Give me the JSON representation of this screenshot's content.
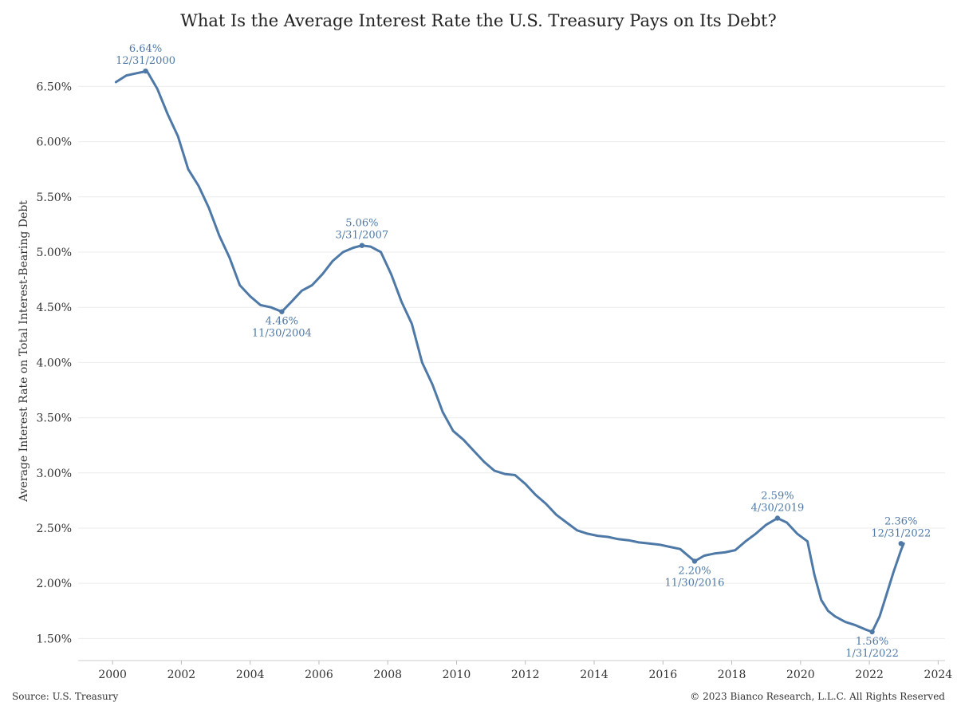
{
  "chart_data": {
    "type": "line",
    "title": "What Is the Average Interest Rate the U.S. Treasury Pays on Its Debt?",
    "xlabel": "",
    "ylabel": "Average Interest Rate on Total Interest-Bearing Debt",
    "xlim": [
      1999.0,
      2024.2
    ],
    "ylim": [
      1.3,
      6.85
    ],
    "x_ticks": [
      2000,
      2002,
      2004,
      2006,
      2008,
      2010,
      2012,
      2014,
      2016,
      2018,
      2020,
      2022,
      2024
    ],
    "x_tick_labels": [
      "2000",
      "2002",
      "2004",
      "2006",
      "2008",
      "2010",
      "2012",
      "2014",
      "2016",
      "2018",
      "2020",
      "2022",
      "2024"
    ],
    "y_ticks": [
      1.5,
      2.0,
      2.5,
      3.0,
      3.5,
      4.0,
      4.5,
      5.0,
      5.5,
      6.0,
      6.5
    ],
    "y_tick_labels": [
      "1.50%",
      "2.00%",
      "2.50%",
      "3.00%",
      "3.50%",
      "4.00%",
      "4.50%",
      "5.00%",
      "5.50%",
      "6.00%",
      "6.50%"
    ],
    "grid": "horizontal",
    "line_color": "#4e79a7",
    "series": [
      {
        "x": [
          2000.1,
          2000.4,
          2000.7,
          2001.0,
          2001.3,
          2001.6,
          2001.9,
          2002.2,
          2002.5,
          2002.8,
          2003.1,
          2003.4,
          2003.7,
          2004.0,
          2004.3,
          2004.6,
          2004.92,
          2005.2,
          2005.5,
          2005.8,
          2006.1,
          2006.4,
          2006.7,
          2007.0,
          2007.25,
          2007.5,
          2007.8,
          2008.1,
          2008.4,
          2008.7,
          2009.0,
          2009.3,
          2009.6,
          2009.9,
          2010.2,
          2010.5,
          2010.8,
          2011.1,
          2011.4,
          2011.7,
          2012.0,
          2012.3,
          2012.6,
          2012.9,
          2013.2,
          2013.5,
          2013.8,
          2014.1,
          2014.4,
          2014.7,
          2015.0,
          2015.3,
          2015.6,
          2015.9,
          2016.2,
          2016.5,
          2016.92,
          2017.2,
          2017.5,
          2017.8,
          2018.1,
          2018.4,
          2018.7,
          2019.0,
          2019.33,
          2019.6,
          2019.9,
          2020.2,
          2020.4,
          2020.6,
          2020.8,
          2021.0,
          2021.3,
          2021.6,
          2021.9,
          2022.08,
          2022.3,
          2022.5,
          2022.7,
          2022.92,
          2023.0
        ],
        "values": [
          6.54,
          6.6,
          6.62,
          6.64,
          6.48,
          6.25,
          6.05,
          5.75,
          5.6,
          5.4,
          5.15,
          4.95,
          4.7,
          4.6,
          4.52,
          4.5,
          4.46,
          4.55,
          4.65,
          4.7,
          4.8,
          4.92,
          5.0,
          5.04,
          5.06,
          5.05,
          5.0,
          4.8,
          4.55,
          4.35,
          4.0,
          3.8,
          3.55,
          3.38,
          3.3,
          3.2,
          3.1,
          3.02,
          2.99,
          2.98,
          2.9,
          2.8,
          2.72,
          2.62,
          2.55,
          2.48,
          2.45,
          2.43,
          2.42,
          2.4,
          2.39,
          2.37,
          2.36,
          2.35,
          2.33,
          2.31,
          2.2,
          2.25,
          2.27,
          2.28,
          2.3,
          2.38,
          2.45,
          2.53,
          2.59,
          2.55,
          2.45,
          2.38,
          2.08,
          1.85,
          1.75,
          1.7,
          1.65,
          1.62,
          1.58,
          1.56,
          1.7,
          1.9,
          2.1,
          2.3,
          2.36
        ]
      }
    ],
    "annotations": [
      {
        "x": 2000.96,
        "y": 6.64,
        "value": "6.64%",
        "date": "12/31/2000",
        "position": "above"
      },
      {
        "x": 2004.92,
        "y": 4.46,
        "value": "4.46%",
        "date": "11/30/2004",
        "position": "below"
      },
      {
        "x": 2007.25,
        "y": 5.06,
        "value": "5.06%",
        "date": "3/31/2007",
        "position": "above"
      },
      {
        "x": 2016.92,
        "y": 2.2,
        "value": "2.20%",
        "date": "11/30/2016",
        "position": "below"
      },
      {
        "x": 2019.33,
        "y": 2.59,
        "value": "2.59%",
        "date": "4/30/2019",
        "position": "above"
      },
      {
        "x": 2022.08,
        "y": 1.56,
        "value": "1.56%",
        "date": "1/31/2022",
        "position": "below"
      },
      {
        "x": 2022.92,
        "y": 2.36,
        "value": "2.36%",
        "date": "12/31/2022",
        "position": "above"
      }
    ]
  },
  "footer": {
    "source": "Source: U.S. Treasury",
    "copyright": "© 2023 Bianco Research, L.L.C. All Rights Reserved"
  }
}
